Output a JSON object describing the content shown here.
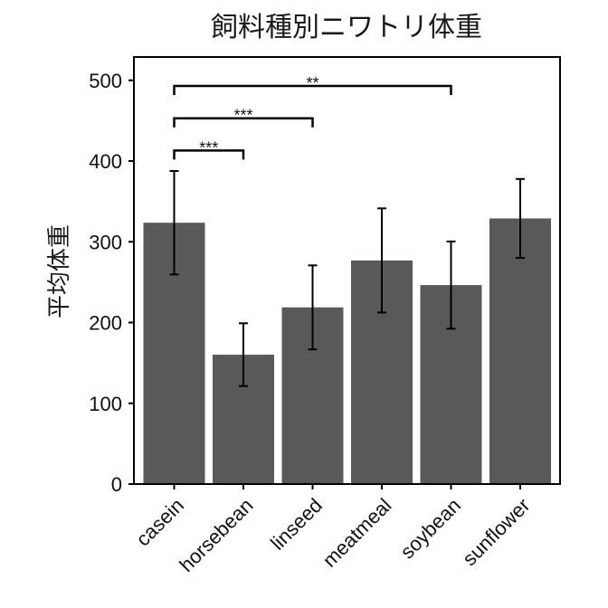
{
  "chart_data": {
    "type": "bar",
    "title": "飼料種別ニワトリ体重",
    "xlabel": "",
    "ylabel": "平均体重",
    "categories": [
      "casein",
      "horsebean",
      "linseed",
      "meatmeal",
      "soybean",
      "sunflower"
    ],
    "values": [
      323.6,
      160.2,
      218.8,
      276.9,
      246.4,
      328.9
    ],
    "error_low": [
      259.5,
      121.3,
      166.8,
      212.4,
      192.4,
      280.0
    ],
    "error_high": [
      387.7,
      199.1,
      270.8,
      341.4,
      300.4,
      377.8
    ],
    "ylim": [
      0,
      525
    ],
    "yticks": [
      0,
      100,
      200,
      300,
      400,
      500
    ],
    "bar_color": "#595959",
    "grid": false,
    "legend": "none",
    "significance": [
      {
        "from": "casein",
        "to": "horsebean",
        "label": "***",
        "y": 413
      },
      {
        "from": "casein",
        "to": "linseed",
        "label": "***",
        "y": 453
      },
      {
        "from": "casein",
        "to": "soybean",
        "label": "**",
        "y": 493
      }
    ]
  }
}
